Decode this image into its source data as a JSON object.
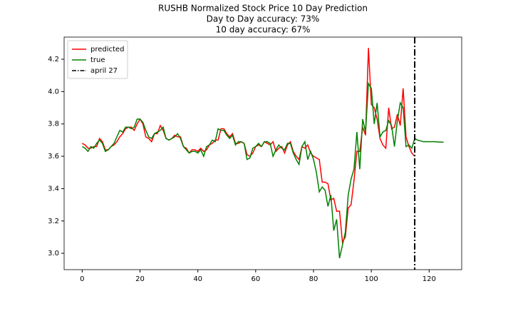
{
  "chart_data": {
    "type": "line",
    "title": "RUSHB Normalized Stock Price 10 Day Prediction",
    "subtitle": [
      "Day to Day accuracy: 73%",
      "10 day accuracy: 67%"
    ],
    "x": [
      0,
      1,
      2,
      3,
      4,
      5,
      6,
      7,
      8,
      9,
      10,
      11,
      12,
      13,
      14,
      15,
      16,
      17,
      18,
      19,
      20,
      21,
      22,
      23,
      24,
      25,
      26,
      27,
      28,
      29,
      30,
      31,
      32,
      33,
      34,
      35,
      36,
      37,
      38,
      39,
      40,
      41,
      42,
      43,
      44,
      45,
      46,
      47,
      48,
      49,
      50,
      51,
      52,
      53,
      54,
      55,
      56,
      57,
      58,
      59,
      60,
      61,
      62,
      63,
      64,
      65,
      66,
      67,
      68,
      69,
      70,
      71,
      72,
      73,
      74,
      75,
      76,
      77,
      78,
      79,
      80,
      81,
      82,
      83,
      84,
      85,
      86,
      87,
      88,
      89,
      90,
      91,
      92,
      93,
      94,
      95,
      96,
      97,
      98,
      99,
      100,
      101,
      102,
      103,
      104,
      105,
      106,
      107,
      108,
      109,
      110,
      111,
      112,
      113,
      114,
      115,
      116,
      117,
      118,
      119,
      120,
      121,
      122,
      123,
      124,
      125
    ],
    "series": [
      {
        "name": "predicted",
        "color": "#ff0000",
        "values": [
          3.68,
          3.67,
          3.65,
          3.65,
          3.66,
          3.66,
          3.71,
          3.69,
          3.64,
          3.64,
          3.66,
          3.67,
          3.69,
          3.72,
          3.74,
          3.77,
          3.78,
          3.78,
          3.76,
          3.8,
          3.83,
          3.8,
          3.72,
          3.71,
          3.69,
          3.74,
          3.74,
          3.79,
          3.76,
          3.71,
          3.7,
          3.71,
          3.73,
          3.72,
          3.72,
          3.66,
          3.65,
          3.62,
          3.64,
          3.64,
          3.63,
          3.65,
          3.63,
          3.64,
          3.67,
          3.68,
          3.7,
          3.7,
          3.77,
          3.77,
          3.74,
          3.72,
          3.74,
          3.68,
          3.68,
          3.69,
          3.68,
          3.61,
          3.6,
          3.62,
          3.66,
          3.67,
          3.66,
          3.69,
          3.68,
          3.67,
          3.69,
          3.63,
          3.65,
          3.66,
          3.62,
          3.67,
          3.69,
          3.63,
          3.6,
          3.58,
          3.66,
          3.65,
          3.67,
          3.62,
          3.6,
          3.59,
          3.58,
          3.44,
          3.44,
          3.43,
          3.33,
          3.34,
          3.26,
          3.26,
          3.07,
          3.1,
          3.28,
          3.3,
          3.45,
          3.63,
          3.63,
          3.78,
          3.73,
          4.27,
          3.92,
          3.9,
          3.83,
          3.71,
          3.67,
          3.65,
          3.9,
          3.77,
          3.78,
          3.86,
          3.79,
          4.02,
          3.72,
          3.66,
          3.62,
          3.6,
          null,
          null,
          null,
          null,
          null,
          null,
          null,
          null,
          null,
          null
        ]
      },
      {
        "name": "true",
        "color": "#008000",
        "values": [
          3.66,
          3.65,
          3.63,
          3.66,
          3.65,
          3.68,
          3.7,
          3.68,
          3.63,
          3.64,
          3.66,
          3.68,
          3.72,
          3.76,
          3.75,
          3.78,
          3.78,
          3.77,
          3.78,
          3.83,
          3.83,
          3.81,
          3.76,
          3.72,
          3.71,
          3.74,
          3.75,
          3.76,
          3.78,
          3.71,
          3.7,
          3.71,
          3.72,
          3.74,
          3.71,
          3.66,
          3.64,
          3.62,
          3.63,
          3.63,
          3.62,
          3.64,
          3.6,
          3.66,
          3.67,
          3.7,
          3.69,
          3.77,
          3.76,
          3.76,
          3.73,
          3.71,
          3.73,
          3.67,
          3.69,
          3.69,
          3.68,
          3.58,
          3.59,
          3.65,
          3.66,
          3.68,
          3.66,
          3.69,
          3.69,
          3.68,
          3.6,
          3.64,
          3.67,
          3.65,
          3.64,
          3.68,
          3.68,
          3.62,
          3.58,
          3.55,
          3.66,
          3.69,
          3.58,
          3.63,
          3.58,
          3.5,
          3.38,
          3.41,
          3.39,
          3.29,
          3.36,
          3.14,
          3.21,
          2.97,
          3.05,
          3.13,
          3.36,
          3.46,
          3.52,
          3.75,
          3.52,
          3.83,
          3.75,
          4.05,
          4.02,
          3.8,
          3.93,
          3.72,
          3.75,
          3.76,
          3.82,
          3.79,
          3.66,
          3.82,
          3.93,
          3.9,
          3.66,
          3.67,
          3.65,
          3.71,
          3.7,
          3.695,
          3.69,
          3.69,
          3.69,
          3.69,
          3.69,
          3.688,
          3.688,
          3.687
        ]
      }
    ],
    "vline": {
      "x": 115,
      "name": "april 27",
      "color": "#000000"
    },
    "xlim": [
      -6.25,
      131.25
    ],
    "xticks": [
      0,
      20,
      40,
      60,
      80,
      100,
      120
    ],
    "ylim": [
      2.899,
      4.337
    ],
    "yticks": [
      {
        "value": 3.0,
        "label": "3.0"
      },
      3.2,
      3.4,
      3.6,
      3.8,
      {
        "value": 4.0,
        "label": "4.0"
      },
      4.2
    ],
    "legend": "upper left",
    "grid": false
  }
}
